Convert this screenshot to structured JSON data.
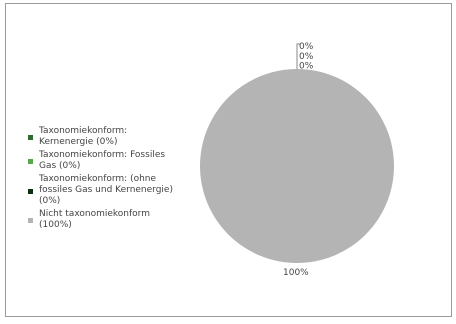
{
  "chart_data": {
    "type": "pie",
    "title": "",
    "legend_position": "left",
    "series": [
      {
        "name": "Taxonomiekonform: Kernenergie (0%)",
        "value": 0,
        "color": "#2e6b2e"
      },
      {
        "name": "Taxonomiekonform: Fossiles Gas (0%)",
        "value": 0,
        "color": "#5aa64a"
      },
      {
        "name": "Taxonomiekonform: (ohne fossiles Gas und Kernenergie) (0%)",
        "value": 0,
        "color": "#0d2e10"
      },
      {
        "name": "Nicht taxonomiekonform (100%)",
        "value": 100,
        "color": "#b4b4b4"
      }
    ],
    "data_labels": [
      "0%",
      "0%",
      "0%",
      "100%"
    ]
  }
}
